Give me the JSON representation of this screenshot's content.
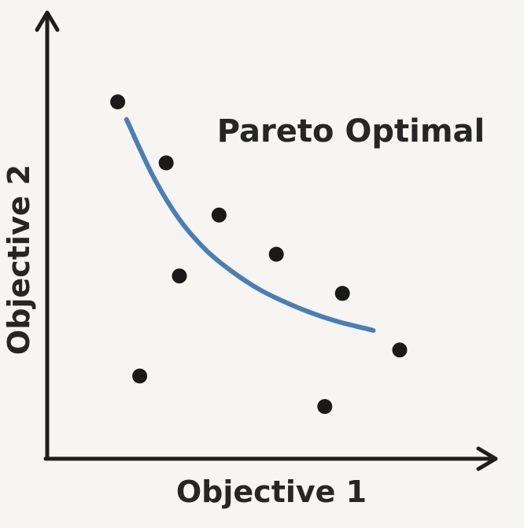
{
  "chart_data": {
    "type": "scatter",
    "title": "",
    "xlabel": "Objective 1",
    "ylabel": "Objective 2",
    "xlim": [
      0,
      10
    ],
    "ylim": [
      0,
      10
    ],
    "grid": false,
    "axis_ticks": false,
    "points": [
      {
        "x": 1.6,
        "y": 8.2
      },
      {
        "x": 2.7,
        "y": 6.8
      },
      {
        "x": 3.9,
        "y": 5.6
      },
      {
        "x": 3.0,
        "y": 4.2
      },
      {
        "x": 5.2,
        "y": 4.7
      },
      {
        "x": 6.7,
        "y": 3.8
      },
      {
        "x": 2.1,
        "y": 1.9
      },
      {
        "x": 6.3,
        "y": 1.2
      },
      {
        "x": 8.0,
        "y": 2.5
      }
    ],
    "frontier": {
      "label": "Pareto Optimal",
      "x": [
        1.8,
        2.4,
        3.0,
        3.6,
        4.2,
        4.8,
        5.4,
        6.0,
        6.6,
        7.2,
        7.4
      ],
      "y": [
        7.8,
        6.5,
        5.5,
        4.8,
        4.3,
        3.9,
        3.6,
        3.35,
        3.15,
        3.0,
        2.95
      ]
    },
    "colors": {
      "frontier": "#4a7fb5",
      "points": "#1a1a1a",
      "axes": "#1e1e1e"
    }
  }
}
